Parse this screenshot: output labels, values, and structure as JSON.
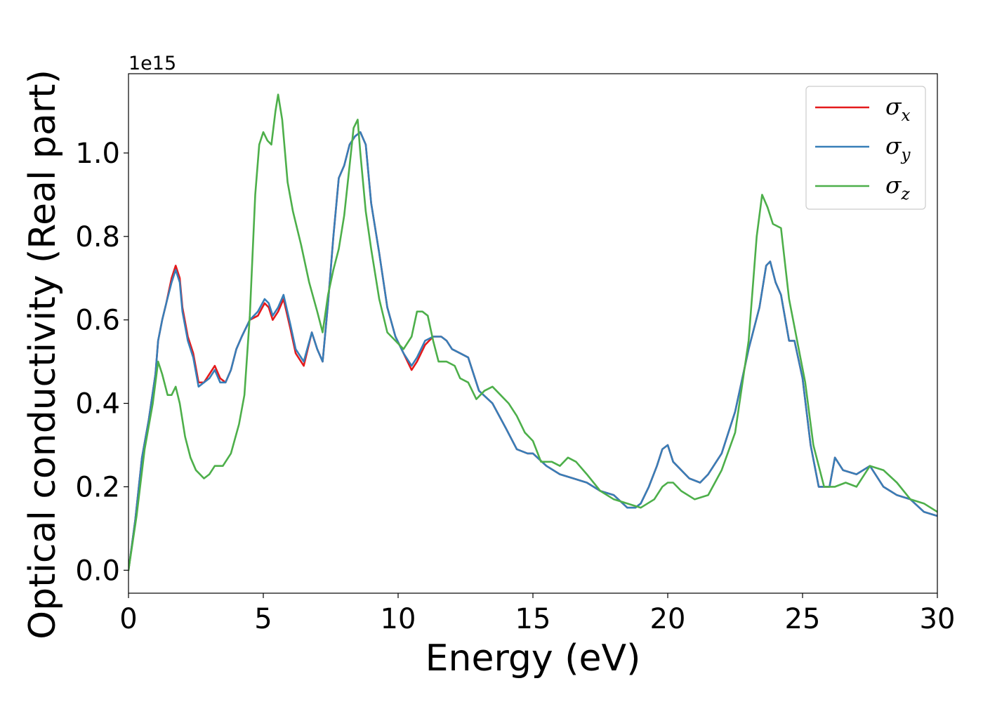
{
  "chart_data": {
    "type": "line",
    "xlabel": "Energy (eV)",
    "ylabel": "Optical conductivity (Real part)",
    "y_offset_text": "1e15",
    "xlim": [
      0,
      30
    ],
    "ylim": [
      -0.055,
      1.19
    ],
    "y_scale_factor": 1000000000000000.0,
    "x_ticks": [
      0,
      5,
      10,
      15,
      20,
      25,
      30
    ],
    "x_tick_labels": [
      "0",
      "5",
      "10",
      "15",
      "20",
      "25",
      "30"
    ],
    "y_ticks": [
      0.0,
      0.2,
      0.4,
      0.6,
      0.8,
      1.0
    ],
    "y_tick_labels": [
      "0.0",
      "0.2",
      "0.4",
      "0.6",
      "0.8",
      "1.0"
    ],
    "grid": false,
    "legend_position": "top-right",
    "series": [
      {
        "name": "σx",
        "symbol": "σ",
        "subscript": "x",
        "color": "#e41a1c",
        "x": [
          0,
          0.25,
          0.5,
          0.75,
          1.0,
          1.1,
          1.25,
          1.4,
          1.6,
          1.75,
          1.9,
          2.0,
          2.2,
          2.4,
          2.6,
          2.8,
          3.0,
          3.2,
          3.4,
          3.6,
          3.8,
          4.0,
          4.2,
          4.5,
          4.8,
          5.05,
          5.2,
          5.35,
          5.55,
          5.75,
          6.0,
          6.2,
          6.5,
          6.8,
          7.0,
          7.2,
          7.4,
          7.6,
          7.8,
          8.0,
          8.2,
          8.4,
          8.6,
          8.8,
          9.0,
          9.3,
          9.6,
          9.9,
          10.2,
          10.5,
          10.7,
          11.0,
          11.3,
          11.6,
          11.8,
          12.0,
          12.3,
          12.6,
          13.0,
          13.5,
          14.0,
          14.4,
          14.8,
          15.0,
          15.5,
          16.0,
          16.5,
          17.0,
          17.5,
          18.0,
          18.5,
          18.8,
          19.0,
          19.3,
          19.6,
          19.8,
          20.0,
          20.2,
          20.5,
          20.8,
          21.2,
          21.5,
          22.0,
          22.5,
          23.0,
          23.4,
          23.65,
          23.8,
          24.0,
          24.2,
          24.5,
          24.7,
          25.0,
          25.3,
          25.6,
          26.0,
          26.2,
          26.5,
          27.0,
          27.5,
          28.0,
          28.5,
          29.0,
          29.5,
          30.0
        ],
        "y": [
          0.0,
          0.12,
          0.27,
          0.36,
          0.47,
          0.55,
          0.6,
          0.64,
          0.7,
          0.73,
          0.7,
          0.63,
          0.56,
          0.52,
          0.45,
          0.45,
          0.47,
          0.49,
          0.46,
          0.45,
          0.48,
          0.53,
          0.56,
          0.6,
          0.61,
          0.64,
          0.63,
          0.6,
          0.62,
          0.65,
          0.58,
          0.52,
          0.49,
          0.57,
          0.53,
          0.5,
          0.64,
          0.8,
          0.94,
          0.97,
          1.02,
          1.04,
          1.05,
          1.02,
          0.88,
          0.76,
          0.63,
          0.56,
          0.52,
          0.48,
          0.5,
          0.54,
          0.56,
          0.56,
          0.55,
          0.53,
          0.52,
          0.51,
          0.43,
          0.4,
          0.34,
          0.29,
          0.28,
          0.28,
          0.25,
          0.23,
          0.22,
          0.21,
          0.19,
          0.18,
          0.15,
          0.15,
          0.16,
          0.2,
          0.25,
          0.29,
          0.3,
          0.26,
          0.24,
          0.22,
          0.21,
          0.23,
          0.28,
          0.38,
          0.53,
          0.63,
          0.73,
          0.74,
          0.69,
          0.66,
          0.55,
          0.55,
          0.46,
          0.3,
          0.2,
          0.2,
          0.27,
          0.24,
          0.23,
          0.25,
          0.2,
          0.18,
          0.17,
          0.14,
          0.13
        ]
      },
      {
        "name": "σy",
        "symbol": "σ",
        "subscript": "y",
        "color": "#377eb8",
        "x": [
          0,
          0.25,
          0.5,
          0.75,
          1.0,
          1.1,
          1.25,
          1.4,
          1.6,
          1.75,
          1.9,
          2.0,
          2.2,
          2.4,
          2.6,
          2.8,
          3.0,
          3.2,
          3.4,
          3.6,
          3.8,
          4.0,
          4.2,
          4.5,
          4.8,
          5.05,
          5.2,
          5.35,
          5.55,
          5.75,
          6.0,
          6.2,
          6.5,
          6.8,
          7.0,
          7.2,
          7.4,
          7.6,
          7.8,
          8.0,
          8.2,
          8.4,
          8.6,
          8.8,
          9.0,
          9.3,
          9.6,
          9.9,
          10.2,
          10.5,
          10.7,
          11.0,
          11.3,
          11.6,
          11.8,
          12.0,
          12.3,
          12.6,
          13.0,
          13.5,
          14.0,
          14.4,
          14.8,
          15.0,
          15.5,
          16.0,
          16.5,
          17.0,
          17.5,
          18.0,
          18.5,
          18.8,
          19.0,
          19.3,
          19.6,
          19.8,
          20.0,
          20.2,
          20.5,
          20.8,
          21.2,
          21.5,
          22.0,
          22.5,
          23.0,
          23.4,
          23.65,
          23.8,
          24.0,
          24.2,
          24.5,
          24.7,
          25.0,
          25.3,
          25.6,
          26.0,
          26.2,
          26.5,
          27.0,
          27.5,
          28.0,
          28.5,
          29.0,
          29.5,
          30.0
        ],
        "y": [
          0.0,
          0.12,
          0.27,
          0.36,
          0.47,
          0.55,
          0.6,
          0.64,
          0.69,
          0.72,
          0.69,
          0.62,
          0.55,
          0.51,
          0.44,
          0.45,
          0.46,
          0.48,
          0.45,
          0.45,
          0.48,
          0.53,
          0.56,
          0.6,
          0.62,
          0.65,
          0.64,
          0.61,
          0.63,
          0.66,
          0.59,
          0.53,
          0.5,
          0.57,
          0.53,
          0.5,
          0.64,
          0.8,
          0.94,
          0.97,
          1.02,
          1.04,
          1.05,
          1.02,
          0.88,
          0.76,
          0.63,
          0.56,
          0.52,
          0.49,
          0.51,
          0.55,
          0.56,
          0.56,
          0.55,
          0.53,
          0.52,
          0.51,
          0.43,
          0.4,
          0.34,
          0.29,
          0.28,
          0.28,
          0.25,
          0.23,
          0.22,
          0.21,
          0.19,
          0.18,
          0.15,
          0.15,
          0.16,
          0.2,
          0.25,
          0.29,
          0.3,
          0.26,
          0.24,
          0.22,
          0.21,
          0.23,
          0.28,
          0.38,
          0.53,
          0.63,
          0.73,
          0.74,
          0.69,
          0.66,
          0.55,
          0.55,
          0.46,
          0.3,
          0.2,
          0.2,
          0.27,
          0.24,
          0.23,
          0.25,
          0.2,
          0.18,
          0.17,
          0.14,
          0.13
        ]
      },
      {
        "name": "σz",
        "symbol": "σ",
        "subscript": "z",
        "color": "#4daf4a",
        "x": [
          0,
          0.3,
          0.6,
          0.9,
          1.1,
          1.25,
          1.45,
          1.6,
          1.75,
          1.9,
          2.1,
          2.3,
          2.5,
          2.8,
          3.0,
          3.2,
          3.5,
          3.8,
          4.1,
          4.3,
          4.5,
          4.7,
          4.85,
          5.0,
          5.15,
          5.3,
          5.45,
          5.55,
          5.7,
          5.9,
          6.1,
          6.4,
          6.7,
          7.0,
          7.2,
          7.4,
          7.6,
          7.8,
          8.0,
          8.2,
          8.35,
          8.5,
          8.6,
          8.8,
          9.0,
          9.3,
          9.6,
          9.9,
          10.2,
          10.5,
          10.7,
          10.9,
          11.1,
          11.3,
          11.5,
          11.8,
          12.1,
          12.3,
          12.6,
          12.9,
          13.2,
          13.5,
          13.8,
          14.1,
          14.4,
          14.7,
          15.0,
          15.3,
          15.7,
          16.0,
          16.3,
          16.6,
          17.0,
          17.5,
          18.0,
          18.5,
          19.0,
          19.5,
          19.8,
          20.0,
          20.2,
          20.5,
          21.0,
          21.5,
          22.0,
          22.5,
          23.0,
          23.3,
          23.5,
          23.7,
          23.9,
          24.2,
          24.5,
          24.8,
          25.1,
          25.4,
          25.8,
          26.2,
          26.6,
          27.0,
          27.5,
          28.0,
          28.5,
          29.0,
          29.5,
          30.0
        ],
        "y": [
          0.0,
          0.13,
          0.29,
          0.4,
          0.5,
          0.47,
          0.42,
          0.42,
          0.44,
          0.4,
          0.32,
          0.27,
          0.24,
          0.22,
          0.23,
          0.25,
          0.25,
          0.28,
          0.35,
          0.42,
          0.61,
          0.9,
          1.02,
          1.05,
          1.03,
          1.02,
          1.1,
          1.14,
          1.08,
          0.93,
          0.86,
          0.78,
          0.69,
          0.62,
          0.57,
          0.66,
          0.72,
          0.77,
          0.85,
          0.97,
          1.06,
          1.08,
          1.0,
          0.86,
          0.77,
          0.65,
          0.57,
          0.55,
          0.53,
          0.56,
          0.62,
          0.62,
          0.61,
          0.55,
          0.5,
          0.5,
          0.49,
          0.46,
          0.45,
          0.41,
          0.43,
          0.44,
          0.42,
          0.4,
          0.37,
          0.33,
          0.31,
          0.26,
          0.26,
          0.25,
          0.27,
          0.26,
          0.23,
          0.19,
          0.17,
          0.16,
          0.15,
          0.17,
          0.2,
          0.21,
          0.21,
          0.19,
          0.17,
          0.18,
          0.24,
          0.33,
          0.55,
          0.8,
          0.9,
          0.87,
          0.83,
          0.82,
          0.65,
          0.55,
          0.45,
          0.3,
          0.2,
          0.2,
          0.21,
          0.2,
          0.25,
          0.24,
          0.21,
          0.17,
          0.16,
          0.14
        ]
      }
    ]
  }
}
